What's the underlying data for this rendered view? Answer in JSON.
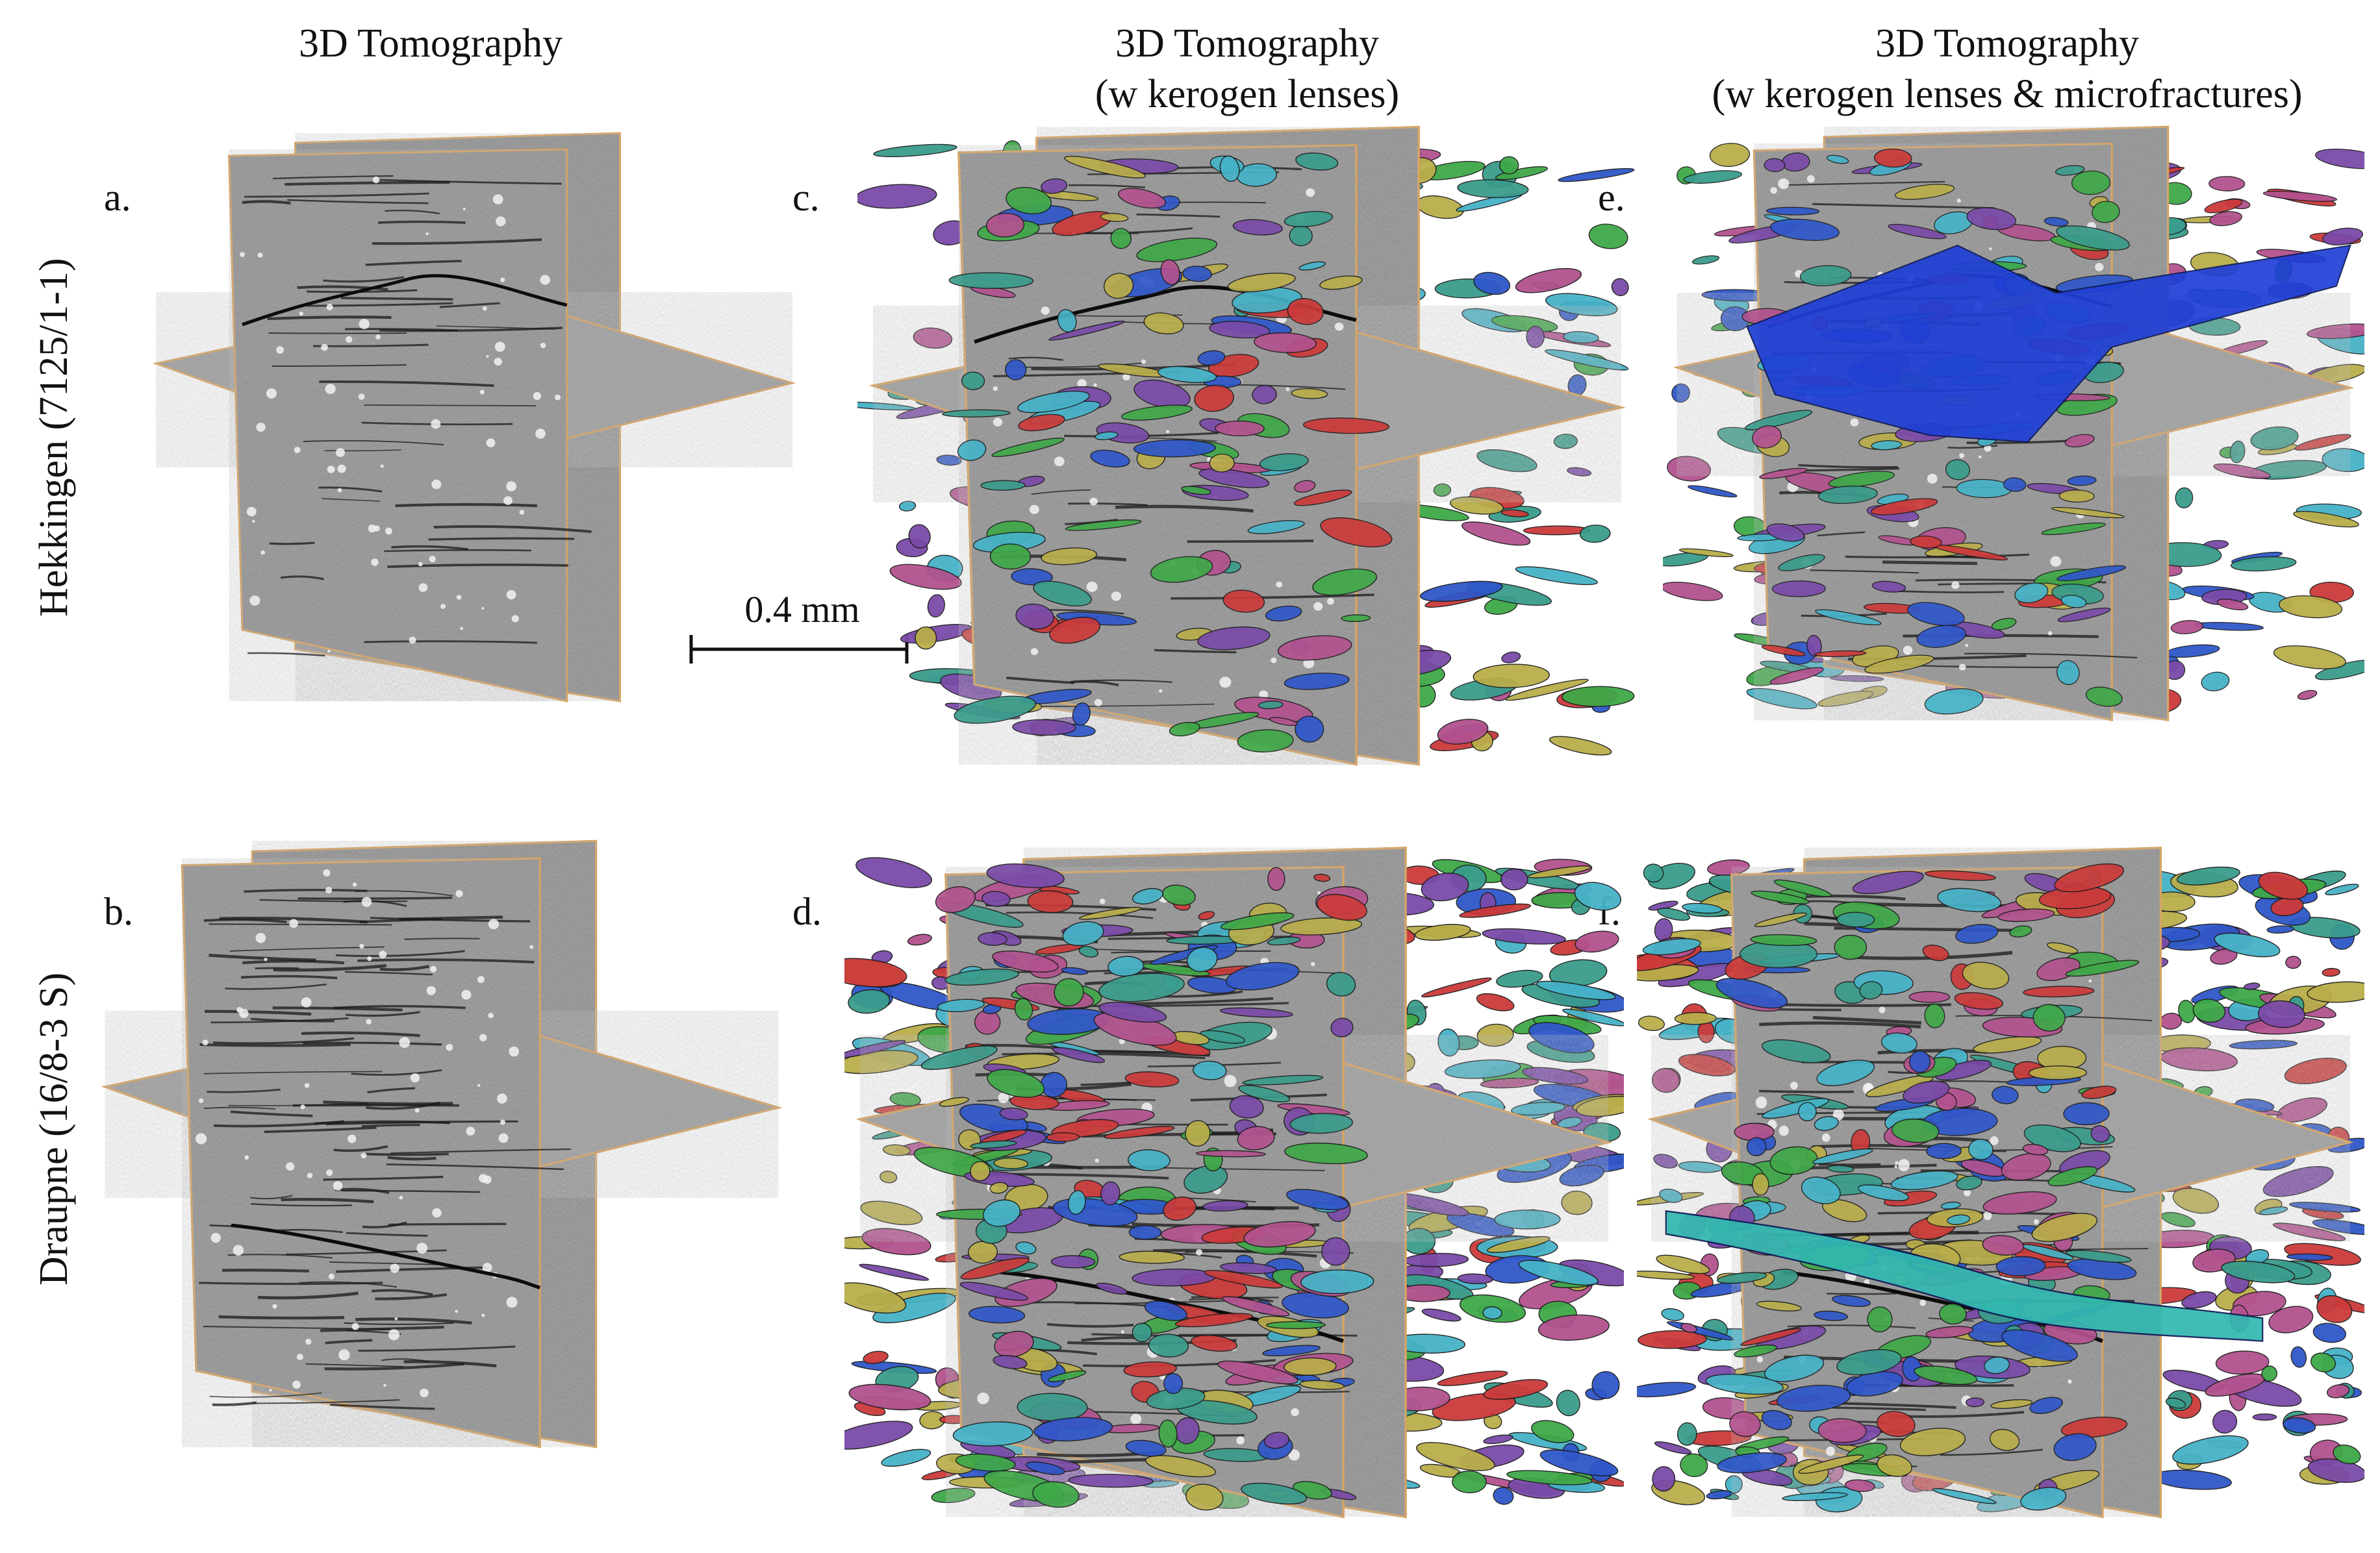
{
  "columns": {
    "a": {
      "line1": "3D Tomography",
      "line2": ""
    },
    "c": {
      "line1": "3D Tomography",
      "line2": "(w kerogen lenses)"
    },
    "e": {
      "line1": "3D Tomography",
      "line2": "(w kerogen lenses & microfractures)"
    }
  },
  "rows": {
    "top": "Hekkingen  (7125/1-1)",
    "bottom": "Draupne  (16/8-3 S)"
  },
  "panels": {
    "a": "a.",
    "b": "b.",
    "c": "c.",
    "d": "d.",
    "e": "e.",
    "f": "f."
  },
  "scale_bar": {
    "label": "0.4 mm"
  },
  "colors": {
    "slice_gray": "#8a8a8a",
    "slice_edge": "#d7a05a",
    "kerogen": [
      "#3a9c8c",
      "#b3528f",
      "#b9ad4a",
      "#2f57c9",
      "#46b3c8",
      "#7a4aa8",
      "#3fa848",
      "#cc3a3a"
    ],
    "microfracture": "#1f3fd6"
  }
}
